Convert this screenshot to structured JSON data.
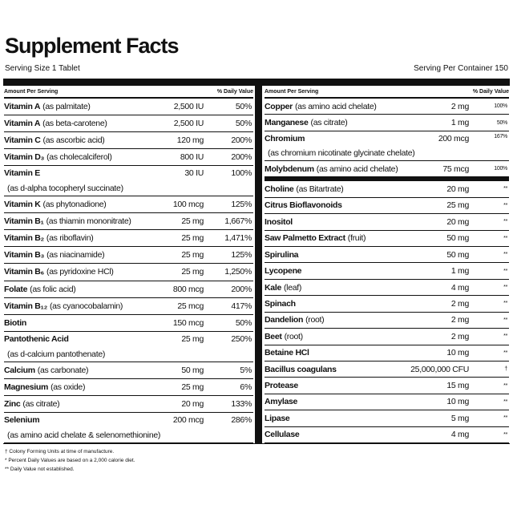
{
  "title": "Supplement Facts",
  "serving_size": "Serving Size 1 Tablet",
  "servings_per_container": "Serving Per Container 150",
  "left": {
    "header": [
      "Amount Per Serving",
      "% Daily Value"
    ],
    "rows": [
      {
        "name": "Vitamin A",
        "detail": "(as palmitate)",
        "amount": "2,500 IU",
        "dv": "50%"
      },
      {
        "name": "Vitamin A",
        "detail": "(as beta-carotene)",
        "amount": "2,500 IU",
        "dv": "50%"
      },
      {
        "name": "Vitamin C",
        "detail": "(as ascorbic acid)",
        "amount": "120 mg",
        "dv": "200%"
      },
      {
        "name": "Vitamin D₃",
        "detail": "(as cholecalciferol)",
        "amount": "800 IU",
        "dv": "200%"
      },
      {
        "name": "Vitamin E",
        "subline": "(as d-alpha tocopheryl succinate)",
        "amount": "30 IU",
        "dv": "100%"
      },
      {
        "name": "Vitamin K",
        "detail": "(as phytonadione)",
        "amount": "100 mcg",
        "dv": "125%"
      },
      {
        "name": "Vitamin B₁",
        "detail": "(as thiamin mononitrate)",
        "amount": "25 mg",
        "dv": "1,667%"
      },
      {
        "name": "Vitamin B₂",
        "detail": "(as riboflavin)",
        "amount": "25 mg",
        "dv": "1,471%"
      },
      {
        "name": "Vitamin B₃",
        "detail": "(as niacinamide)",
        "amount": "25 mg",
        "dv": "125%"
      },
      {
        "name": "Vitamin B₆",
        "detail": "(as pyridoxine HCl)",
        "amount": "25 mg",
        "dv": "1,250%"
      },
      {
        "name": "Folate",
        "detail": "(as folic acid)",
        "amount": "800 mcg",
        "dv": "200%"
      },
      {
        "name": "Vitamin B₁₂",
        "detail": "(as cyanocobalamin)",
        "amount": "25 mcg",
        "dv": "417%"
      },
      {
        "name": "Biotin",
        "amount": "150 mcg",
        "dv": "50%"
      },
      {
        "name": "Pantothenic Acid",
        "subline": "(as d-calcium pantothenate)",
        "amount": "25 mg",
        "dv": "250%"
      },
      {
        "name": "Calcium",
        "detail": "(as carbonate)",
        "amount": "50 mg",
        "dv": "5%"
      },
      {
        "name": "Magnesium",
        "detail": "(as oxide)",
        "amount": "25 mg",
        "dv": "6%"
      },
      {
        "name": "Zinc",
        "detail": "(as citrate)",
        "amount": "20 mg",
        "dv": "133%"
      },
      {
        "name": "Selenium",
        "subline": "(as amino acid chelate & selenomethionine)",
        "amount": "200 mcg",
        "dv": "286%"
      }
    ]
  },
  "right": {
    "header": [
      "Amount Per Serving",
      "% Daily Value"
    ],
    "sections": [
      [
        {
          "name": "Copper",
          "detail": "(as amino acid chelate)",
          "amount": "2 mg",
          "dv": "100%"
        },
        {
          "name": "Manganese",
          "detail": "(as citrate)",
          "amount": "1 mg",
          "dv": "50%"
        },
        {
          "name": "Chromium",
          "subline": "(as chromium nicotinate glycinate chelate)",
          "amount": "200 mcg",
          "dv": "167%"
        },
        {
          "name": "Molybdenum",
          "detail": "(as amino acid chelate)",
          "amount": "75 mcg",
          "dv": "100%"
        }
      ],
      [
        {
          "name": "Choline",
          "detail": "(as Bitartrate)",
          "amount": "20 mg",
          "dv": "**"
        },
        {
          "name": "Citrus Bioflavonoids",
          "amount": "25 mg",
          "dv": "**"
        },
        {
          "name": "Inositol",
          "amount": "20 mg",
          "dv": "**"
        },
        {
          "name": "Saw Palmetto Extract",
          "detail": "(fruit)",
          "amount": "50 mg",
          "dv": "**"
        },
        {
          "name": "Spirulina",
          "amount": "50 mg",
          "dv": "**"
        },
        {
          "name": "Lycopene",
          "amount": "1 mg",
          "dv": "**"
        },
        {
          "name": "Kale",
          "detail": "(leaf)",
          "amount": "4 mg",
          "dv": "**"
        },
        {
          "name": "Spinach",
          "amount": "2 mg",
          "dv": "**"
        },
        {
          "name": "Dandelion",
          "detail": "(root)",
          "amount": "2 mg",
          "dv": "**"
        },
        {
          "name": "Beet",
          "detail": "(root)",
          "amount": "2 mg",
          "dv": "**"
        },
        {
          "name": "Betaine HCl",
          "amount": "10 mg",
          "dv": "**"
        },
        {
          "name": "Bacillus coagulans",
          "amount": "25,000,000 CFU",
          "dv": "†"
        },
        {
          "name": "Protease",
          "amount": "15 mg",
          "dv": "**"
        },
        {
          "name": "Amylase",
          "amount": "10 mg",
          "dv": "**"
        },
        {
          "name": "Lipase",
          "amount": "5 mg",
          "dv": "**"
        },
        {
          "name": "Cellulase",
          "amount": "4 mg",
          "dv": "**"
        }
      ]
    ]
  },
  "footnotes": [
    "† Colony Forming Units at time of manufacture.",
    "* Percent Daily Values are based on a 2,000 calorie diet.",
    "** Daily Value not established."
  ]
}
